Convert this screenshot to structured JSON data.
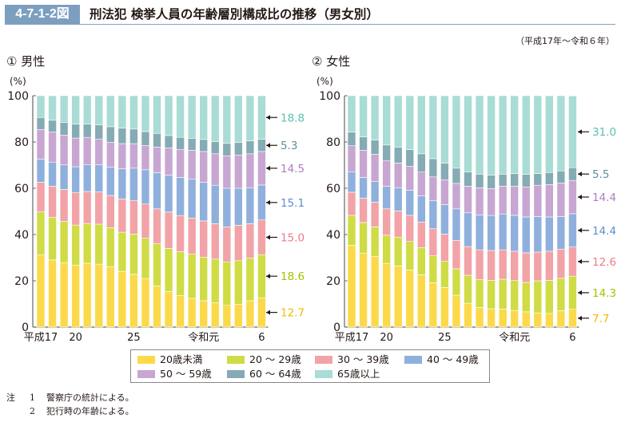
{
  "header": {
    "figure_number": "4-7-1-2図",
    "title": "刑法犯 検挙人員の年齢層別構成比の推移（男女別）",
    "period": "（平成17年～令和６年）"
  },
  "notes": [
    {
      "mark": "注",
      "num": "1",
      "text": "警察庁の統計による。"
    },
    {
      "mark": "",
      "num": "2",
      "text": "犯行時の年齢による。"
    }
  ],
  "legend": [
    {
      "label": "20歳未満",
      "color": "#fcd94a"
    },
    {
      "label": "20 ～ 29歳",
      "color": "#cfdc45"
    },
    {
      "label": "30 ～ 39歳",
      "color": "#f2a3a7"
    },
    {
      "label": "40 ～ 49歳",
      "color": "#8fb0dd"
    },
    {
      "label": "50 ～ 59歳",
      "color": "#c8a6d2"
    },
    {
      "label": "60 ～ 64歳",
      "color": "#85abb4"
    },
    {
      "label": "65歳以上",
      "color": "#a9dcd4"
    }
  ],
  "chart_data": [
    {
      "type": "bar",
      "stacked": true,
      "title": "① 男性",
      "ylabel": "(%)",
      "ylim": [
        0,
        100
      ],
      "yticks": [
        0,
        20,
        40,
        60,
        80,
        100
      ],
      "categories": [
        "平成17",
        "18",
        "19",
        "20",
        "21",
        "22",
        "23",
        "24",
        "25",
        "26",
        "27",
        "28",
        "29",
        "30",
        "令和元",
        "2",
        "3",
        "4",
        "5",
        "6"
      ],
      "xtick_labels": [
        {
          "index": 0,
          "label": "平成17"
        },
        {
          "index": 3,
          "label": "20"
        },
        {
          "index": 8,
          "label": "25"
        },
        {
          "index": 14,
          "label": "令和元"
        },
        {
          "index": 19,
          "label": "6"
        }
      ],
      "series": [
        {
          "name": "20歳未満",
          "values": [
            31.3,
            29.0,
            27.9,
            26.8,
            27.6,
            27.2,
            26.1,
            24.1,
            22.8,
            21.0,
            17.8,
            15.4,
            13.7,
            12.4,
            11.4,
            10.6,
            9.4,
            9.9,
            11.4,
            12.7
          ]
        },
        {
          "name": "20 ～ 29歳",
          "values": [
            18.5,
            18.4,
            17.8,
            17.3,
            17.2,
            17.3,
            16.9,
            16.9,
            17.4,
            17.4,
            18.2,
            18.6,
            18.9,
            19.1,
            18.8,
            18.8,
            18.8,
            18.8,
            18.4,
            18.6
          ]
        },
        {
          "name": "30 ～ 39歳",
          "values": [
            12.8,
            13.5,
            13.8,
            14.1,
            13.8,
            13.9,
            13.9,
            14.4,
            14.4,
            14.8,
            15.1,
            15.7,
            15.6,
            15.6,
            15.7,
            15.3,
            15.1,
            15.3,
            14.9,
            15.0
          ]
        },
        {
          "name": "40 ～ 49歳",
          "values": [
            10.0,
            10.4,
            10.6,
            11.1,
            11.5,
            11.7,
            12.3,
            13.0,
            14.1,
            14.8,
            15.6,
            16.0,
            16.5,
            16.8,
            16.7,
            16.6,
            16.7,
            16.0,
            15.4,
            15.1
          ]
        },
        {
          "name": "50 ～ 59歳",
          "values": [
            12.8,
            13.0,
            12.9,
            12.4,
            11.9,
            11.2,
            10.7,
            10.9,
            10.6,
            10.5,
            11.1,
            11.7,
            12.1,
            12.5,
            13.3,
            13.6,
            14.0,
            14.4,
            14.8,
            14.5
          ]
        },
        {
          "name": "60 ～ 64歳",
          "values": [
            5.2,
            5.1,
            5.5,
            6.0,
            5.7,
            6.1,
            6.7,
            6.7,
            6.3,
            6.0,
            5.9,
            5.4,
            5.2,
            5.2,
            5.2,
            5.3,
            5.4,
            5.4,
            5.6,
            5.3
          ]
        },
        {
          "name": "65歳以上",
          "values": [
            9.4,
            10.6,
            11.5,
            12.3,
            12.3,
            12.6,
            13.4,
            14.0,
            14.4,
            15.5,
            16.3,
            17.2,
            18.0,
            18.4,
            18.9,
            19.8,
            20.6,
            20.2,
            19.5,
            18.8
          ]
        }
      ],
      "annotations": [
        "12.7",
        "18.6",
        "15.0",
        "15.1",
        "14.5",
        "5.3",
        "18.8"
      ]
    },
    {
      "type": "bar",
      "stacked": true,
      "title": "② 女性",
      "ylabel": "(%)",
      "ylim": [
        0,
        100
      ],
      "yticks": [
        0,
        20,
        40,
        60,
        80,
        100
      ],
      "categories": [
        "平成17",
        "18",
        "19",
        "20",
        "21",
        "22",
        "23",
        "24",
        "25",
        "26",
        "27",
        "28",
        "29",
        "30",
        "令和元",
        "2",
        "3",
        "4",
        "5",
        "6"
      ],
      "xtick_labels": [
        {
          "index": 0,
          "label": "平成17"
        },
        {
          "index": 3,
          "label": "20"
        },
        {
          "index": 8,
          "label": "25"
        },
        {
          "index": 14,
          "label": "令和元"
        },
        {
          "index": 19,
          "label": "6"
        }
      ],
      "series": [
        {
          "name": "20歳未満",
          "values": [
            35.4,
            32.0,
            30.6,
            27.5,
            26.4,
            24.7,
            22.6,
            19.2,
            17.1,
            13.8,
            10.3,
            8.5,
            7.9,
            7.8,
            7.2,
            6.6,
            6.1,
            5.9,
            7.1,
            7.7
          ]
        },
        {
          "name": "20 ～ 29歳",
          "values": [
            12.9,
            13.2,
            12.7,
            12.2,
            12.5,
            12.3,
            11.8,
            11.6,
            11.3,
            11.4,
            12.1,
            12.0,
            12.3,
            12.9,
            12.9,
            12.7,
            13.9,
            14.3,
            14.0,
            14.3
          ]
        },
        {
          "name": "30 ～ 39歳",
          "values": [
            10.0,
            10.5,
            10.7,
            11.4,
            11.3,
            11.3,
            11.0,
            11.7,
            11.8,
            12.2,
            12.4,
            12.9,
            12.9,
            12.7,
            12.7,
            12.8,
            12.4,
            12.6,
            12.6,
            12.6
          ]
        },
        {
          "name": "40 ～ 49歳",
          "values": [
            8.7,
            9.0,
            9.0,
            9.8,
            9.9,
            10.8,
            11.3,
            12.1,
            12.7,
            13.7,
            14.6,
            15.1,
            15.1,
            15.5,
            15.5,
            15.5,
            15.4,
            14.8,
            14.1,
            14.4
          ]
        },
        {
          "name": "50 ～ 59歳",
          "values": [
            11.4,
            11.7,
            11.7,
            11.1,
            10.8,
            10.4,
            10.3,
            10.3,
            10.7,
            11.0,
            11.5,
            11.7,
            11.7,
            12.0,
            12.6,
            13.0,
            13.5,
            14.0,
            14.5,
            14.4
          ]
        },
        {
          "name": "60 ～ 64歳",
          "values": [
            5.9,
            5.8,
            6.1,
            6.7,
            6.9,
            7.2,
            7.9,
            7.9,
            7.2,
            6.6,
            6.1,
            5.9,
            5.8,
            5.2,
            5.5,
            5.4,
            5.1,
            5.2,
            5.2,
            5.5
          ]
        },
        {
          "name": "65歳以上",
          "values": [
            15.7,
            17.8,
            19.2,
            21.3,
            22.2,
            23.3,
            25.1,
            27.2,
            29.2,
            31.3,
            33.0,
            33.9,
            34.3,
            33.9,
            33.6,
            34.0,
            33.6,
            33.2,
            32.5,
            31.0
          ]
        }
      ],
      "annotations": [
        "7.7",
        "14.3",
        "12.6",
        "14.4",
        "14.4",
        "5.5",
        "31.0"
      ]
    }
  ],
  "label_colors": [
    "#f5b800",
    "#a8c000",
    "#ec7b85",
    "#5b8fd0",
    "#b07cc0",
    "#5e8e9a",
    "#5cc0b0"
  ]
}
